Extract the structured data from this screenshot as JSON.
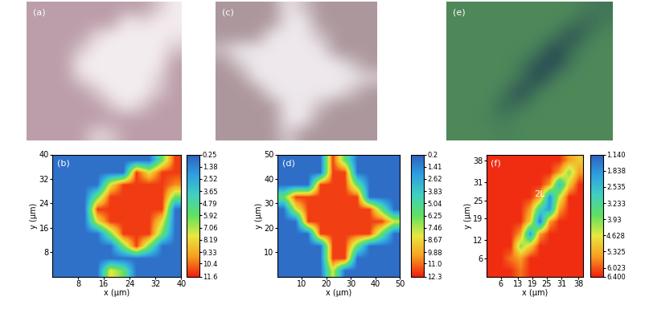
{
  "chart_data": [
    {
      "type": "image",
      "label": "(a)",
      "colors": [
        "#b99aa6",
        "#f6f0f2"
      ]
    },
    {
      "type": "heatmap",
      "label": "(b)",
      "xlabel": "x (μm)",
      "ylabel": "y (μm)",
      "xlim": [
        0,
        40
      ],
      "ylim": [
        0,
        40
      ],
      "xticks": [
        8,
        16,
        24,
        32,
        40
      ],
      "yticks": [
        8,
        16,
        24,
        32,
        40
      ],
      "cells": [
        [
          0.8,
          0.8,
          0.8,
          0.8,
          0.8,
          0.8,
          0.8,
          0.8,
          6,
          11.2
        ],
        [
          0.8,
          0.8,
          0.8,
          0.8,
          0.8,
          0.8,
          11.2,
          8,
          11.2,
          11.2
        ],
        [
          0.8,
          0.8,
          0.8,
          0.8,
          8,
          11.2,
          11.2,
          11.2,
          11.2,
          10
        ],
        [
          0.8,
          0.8,
          0.8,
          6,
          11.2,
          11.2,
          11.2,
          11.2,
          11.2,
          6
        ],
        [
          0.8,
          0.8,
          0.8,
          11.2,
          11.2,
          11.2,
          11.2,
          11.2,
          11.2,
          0.8
        ],
        [
          0.8,
          0.8,
          0.8,
          8,
          11.2,
          11.2,
          11.2,
          11.2,
          8,
          0.8
        ],
        [
          0.8,
          0.8,
          0.8,
          0.8,
          6,
          11.2,
          11.2,
          11.2,
          6,
          0.8
        ],
        [
          0.8,
          0.8,
          0.8,
          0.8,
          0.8,
          6,
          11.2,
          6,
          0.8,
          0.8
        ],
        [
          0.8,
          0.8,
          0.8,
          0.8,
          0.8,
          0.8,
          0.8,
          0.8,
          0.8,
          0.8
        ],
        [
          0.8,
          0.8,
          0.8,
          0.8,
          8,
          6,
          0.8,
          0.8,
          0.8,
          0.8
        ]
      ],
      "colorbar": {
        "range": [
          0.25,
          11.6
        ],
        "ticks": [
          0.25,
          1.38,
          2.52,
          3.65,
          4.79,
          5.92,
          7.06,
          8.19,
          9.33,
          10.4,
          11.6
        ]
      }
    },
    {
      "type": "image",
      "label": "(c)",
      "colors": [
        "#a99499",
        "#f1ecf0"
      ]
    },
    {
      "type": "heatmap",
      "label": "(d)",
      "xlabel": "x (μm)",
      "ylabel": "y (μm)",
      "xlim": [
        0,
        50
      ],
      "ylim": [
        0,
        50
      ],
      "xticks": [
        10,
        20,
        30,
        40,
        50
      ],
      "yticks": [
        10,
        20,
        30,
        40,
        50
      ],
      "cells": [
        [
          0.7,
          0.7,
          0.7,
          0.7,
          11.8,
          6,
          0.7,
          0.7,
          0.7,
          0.7
        ],
        [
          0.7,
          0.7,
          0.7,
          0.7,
          11.8,
          11.8,
          0.7,
          0.7,
          0.7,
          0.7
        ],
        [
          0.7,
          0.7,
          0.7,
          11.8,
          11.8,
          11.8,
          6,
          0.7,
          0.7,
          0.7
        ],
        [
          6,
          11.8,
          11.8,
          11.8,
          11.8,
          11.8,
          11.8,
          0.7,
          0.7,
          0.7
        ],
        [
          0.7,
          8,
          11.8,
          11.8,
          11.8,
          11.8,
          11.8,
          11.8,
          6,
          0.7
        ],
        [
          0.7,
          0.7,
          11.8,
          11.8,
          11.8,
          11.8,
          11.8,
          11.8,
          11.8,
          8
        ],
        [
          0.7,
          0.7,
          0.7,
          11.8,
          11.8,
          11.8,
          11.8,
          11.8,
          6,
          0.7
        ],
        [
          0.7,
          0.7,
          0.7,
          0.7,
          11.8,
          11.8,
          6,
          0.7,
          0.7,
          0.7
        ],
        [
          0.7,
          0.7,
          0.7,
          0.7,
          11.8,
          11.8,
          0.7,
          0.7,
          0.7,
          0.7
        ],
        [
          0.7,
          0.7,
          0.7,
          0.7,
          8,
          0.7,
          0.7,
          0.7,
          0.7,
          0.7
        ]
      ],
      "colorbar": {
        "range": [
          0.2,
          12.3
        ],
        "ticks": [
          0.2,
          1.41,
          2.62,
          3.83,
          5.04,
          6.25,
          7.46,
          8.67,
          9.88,
          11.0,
          12.3
        ]
      }
    },
    {
      "type": "image",
      "label": "(e)",
      "colors": [
        "#1c3b52",
        "#4f8a5a"
      ]
    },
    {
      "type": "heatmap",
      "label": "(f)",
      "xlabel": "x (μm)",
      "ylabel": "y (μm)",
      "xlim": [
        0,
        40
      ],
      "ylim": [
        0,
        40
      ],
      "xticks": [
        6,
        13,
        19,
        25,
        31,
        38
      ],
      "yticks": [
        6,
        12,
        19,
        25,
        31,
        38
      ],
      "cells": [
        [
          6.3,
          6.3,
          6.3,
          6.3,
          6.3,
          6.3,
          6.3,
          6.3,
          5.5,
          5.0
        ],
        [
          6.3,
          6.3,
          6.3,
          6.3,
          6.3,
          6.3,
          6.3,
          5.5,
          4.0,
          5.5
        ],
        [
          6.3,
          6.3,
          6.3,
          6.3,
          6.3,
          6.3,
          5.5,
          2.5,
          5.0,
          6.3
        ],
        [
          6.3,
          6.3,
          6.3,
          6.3,
          6.3,
          5.5,
          1.8,
          4.5,
          6.3,
          6.3
        ],
        [
          6.3,
          6.3,
          6.3,
          6.3,
          5.5,
          3.0,
          2.0,
          5.5,
          6.3,
          6.3
        ],
        [
          6.3,
          6.3,
          6.3,
          6.3,
          5.0,
          1.5,
          5.5,
          6.3,
          6.3,
          6.3
        ],
        [
          6.3,
          6.3,
          6.3,
          5.5,
          2.0,
          5.5,
          6.3,
          6.3,
          6.3,
          6.3
        ],
        [
          6.3,
          6.3,
          6.3,
          4.0,
          5.0,
          6.3,
          6.3,
          6.3,
          6.3,
          6.3
        ],
        [
          6.3,
          6.3,
          5.8,
          5.5,
          6.3,
          6.3,
          6.3,
          6.3,
          6.3,
          6.3
        ],
        [
          6.3,
          6.3,
          6.3,
          5.8,
          6.3,
          6.3,
          6.3,
          6.3,
          6.3,
          6.3
        ]
      ],
      "annotations": [
        {
          "text": "2L",
          "x": 22,
          "y": 27
        }
      ],
      "colorbar": {
        "range": [
          1.14,
          6.4
        ],
        "ticks": [
          {
            "value": 1.14,
            "label": "1.140"
          },
          1.838,
          2.535,
          3.233,
          3.93,
          4.628,
          5.325,
          6.023,
          {
            "value": 6.4,
            "label": "6.400"
          }
        ]
      }
    }
  ]
}
